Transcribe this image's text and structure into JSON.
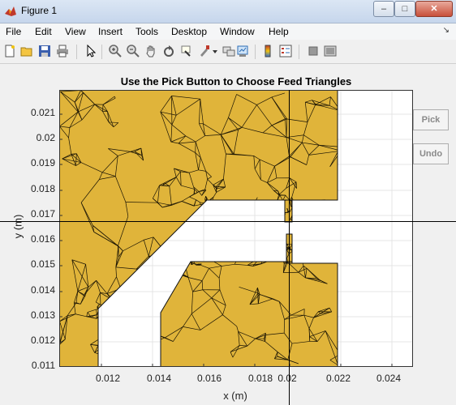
{
  "window": {
    "title": "Figure 1",
    "minimize_label": "–",
    "maximize_label": "□",
    "close_label": "✕"
  },
  "menu": {
    "items": [
      {
        "label": "File"
      },
      {
        "label": "Edit"
      },
      {
        "label": "View"
      },
      {
        "label": "Insert"
      },
      {
        "label": "Tools"
      },
      {
        "label": "Desktop"
      },
      {
        "label": "Window"
      },
      {
        "label": "Help"
      }
    ],
    "arrow": "↘"
  },
  "toolbar": {
    "icons": [
      "new-figure-icon",
      "open-file-icon",
      "save-icon",
      "print-icon",
      "pointer-icon",
      "zoom-in-icon",
      "zoom-out-icon",
      "pan-icon",
      "rotate-3d-icon",
      "data-cursor-icon",
      "brush-icon",
      "link-plot-icon",
      "colorbar-icon",
      "legend-icon",
      "hide-plot-tools-icon",
      "show-plot-tools-icon"
    ]
  },
  "plot": {
    "title": "Use the Pick Button to Choose Feed Triangles",
    "xlabel": "x (m)",
    "ylabel": "y (m)",
    "xticks": [
      "0.012",
      "0.014",
      "0.016",
      "0.018",
      "0.02",
      "0.022",
      "0.024"
    ],
    "yticks": [
      "0.021",
      "0.02",
      "0.019",
      "0.018",
      "0.017",
      "0.016",
      "0.015",
      "0.014",
      "0.013",
      "0.012",
      "0.011"
    ],
    "fill_color": "#E0B43A",
    "xlim": [
      0.011,
      0.0249
    ],
    "ylim": [
      0.0109,
      0.0219
    ]
  },
  "buttons": {
    "pick": "Pick",
    "undo": "Undo"
  }
}
